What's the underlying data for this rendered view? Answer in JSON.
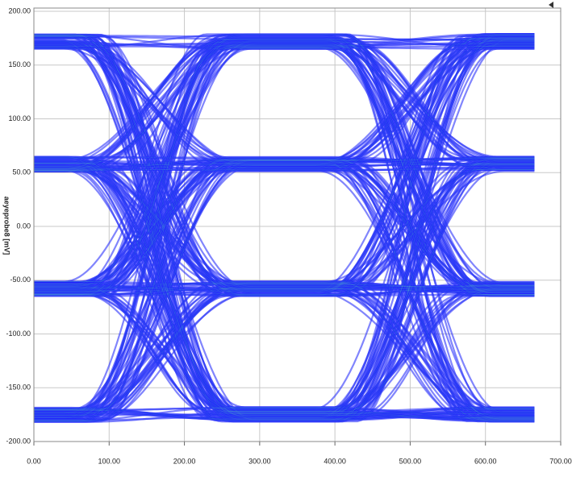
{
  "chart_data": {
    "type": "eye",
    "ylabel": "aeyeprobe8 [mV]",
    "levels": [
      172,
      58,
      -58,
      -175
    ],
    "crossings": [
      165,
      500
    ],
    "trace_xlim": [
      0,
      665
    ],
    "color": "#1a1aff",
    "xlim": [
      0,
      700
    ],
    "ylim": [
      -200,
      200
    ],
    "xticks": [
      {
        "value": 0,
        "label": "0.00"
      },
      {
        "value": 100,
        "label": "100.00"
      },
      {
        "value": 200,
        "label": "200.00"
      },
      {
        "value": 300,
        "label": "300.00"
      },
      {
        "value": 400,
        "label": "400.00"
      },
      {
        "value": 500,
        "label": "500.00"
      },
      {
        "value": 600,
        "label": "600.00"
      },
      {
        "value": 700,
        "label": "700.00"
      }
    ],
    "yticks": [
      {
        "value": -200,
        "label": "-200.00"
      },
      {
        "value": -150,
        "label": "-150.00"
      },
      {
        "value": -100,
        "label": "-100.00"
      },
      {
        "value": -50,
        "label": "-50.00"
      },
      {
        "value": 0,
        "label": "0.00"
      },
      {
        "value": 50,
        "label": "50.00"
      },
      {
        "value": 100,
        "label": "100.00"
      },
      {
        "value": 150,
        "label": "150.00"
      },
      {
        "value": 200,
        "label": "200.00"
      }
    ],
    "grid": true
  }
}
